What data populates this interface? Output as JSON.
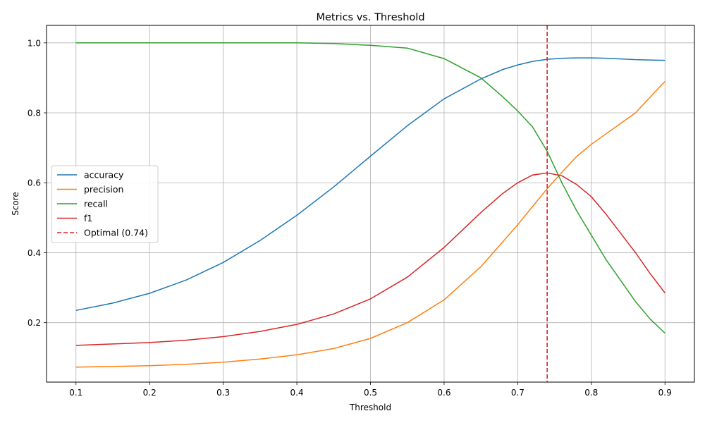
{
  "chart_data": {
    "type": "line",
    "title": "Metrics vs. Threshold",
    "xlabel": "Threshold",
    "ylabel": "Score",
    "xlim": [
      0.06,
      0.94
    ],
    "ylim": [
      0.03,
      1.05
    ],
    "xticks": [
      0.1,
      0.2,
      0.3,
      0.4,
      0.5,
      0.6,
      0.7,
      0.8,
      0.9
    ],
    "xtick_labels": [
      "0.1",
      "0.2",
      "0.3",
      "0.4",
      "0.5",
      "0.6",
      "0.7",
      "0.8",
      "0.9"
    ],
    "yticks": [
      0.2,
      0.4,
      0.6,
      0.8,
      1.0
    ],
    "ytick_labels": [
      "0.2",
      "0.4",
      "0.6",
      "0.8",
      "1.0"
    ],
    "grid": true,
    "legend_position": "center-left",
    "x": [
      0.1,
      0.15,
      0.2,
      0.25,
      0.3,
      0.35,
      0.4,
      0.45,
      0.5,
      0.55,
      0.6,
      0.65,
      0.68,
      0.7,
      0.72,
      0.74,
      0.76,
      0.78,
      0.8,
      0.82,
      0.84,
      0.86,
      0.88,
      0.9
    ],
    "series": [
      {
        "name": "accuracy",
        "color": "#1f77b4",
        "values": [
          0.235,
          0.256,
          0.284,
          0.322,
          0.372,
          0.435,
          0.507,
          0.588,
          0.676,
          0.763,
          0.84,
          0.897,
          0.924,
          0.937,
          0.947,
          0.953,
          0.956,
          0.957,
          0.957,
          0.956,
          0.954,
          0.952,
          0.951,
          0.95
        ]
      },
      {
        "name": "precision",
        "color": "#ff7f0e",
        "values": [
          0.073,
          0.075,
          0.077,
          0.081,
          0.087,
          0.096,
          0.108,
          0.126,
          0.155,
          0.2,
          0.265,
          0.36,
          0.432,
          0.48,
          0.532,
          0.583,
          0.63,
          0.675,
          0.71,
          0.74,
          0.77,
          0.8,
          0.845,
          0.89
        ]
      },
      {
        "name": "recall",
        "color": "#2ca02c",
        "values": [
          1.0,
          1.0,
          1.0,
          1.0,
          1.0,
          1.0,
          1.0,
          0.998,
          0.993,
          0.985,
          0.955,
          0.9,
          0.845,
          0.805,
          0.76,
          0.69,
          0.6,
          0.52,
          0.45,
          0.38,
          0.32,
          0.26,
          0.21,
          0.17
        ]
      },
      {
        "name": "f1",
        "color": "#d62728",
        "values": [
          0.135,
          0.139,
          0.143,
          0.15,
          0.16,
          0.175,
          0.195,
          0.225,
          0.268,
          0.33,
          0.415,
          0.515,
          0.57,
          0.6,
          0.622,
          0.628,
          0.62,
          0.595,
          0.56,
          0.51,
          0.455,
          0.4,
          0.34,
          0.285
        ]
      }
    ],
    "vline": {
      "name": "Optimal (0.74)",
      "x": 0.74,
      "color": "#d62728",
      "style": "dashed"
    }
  }
}
